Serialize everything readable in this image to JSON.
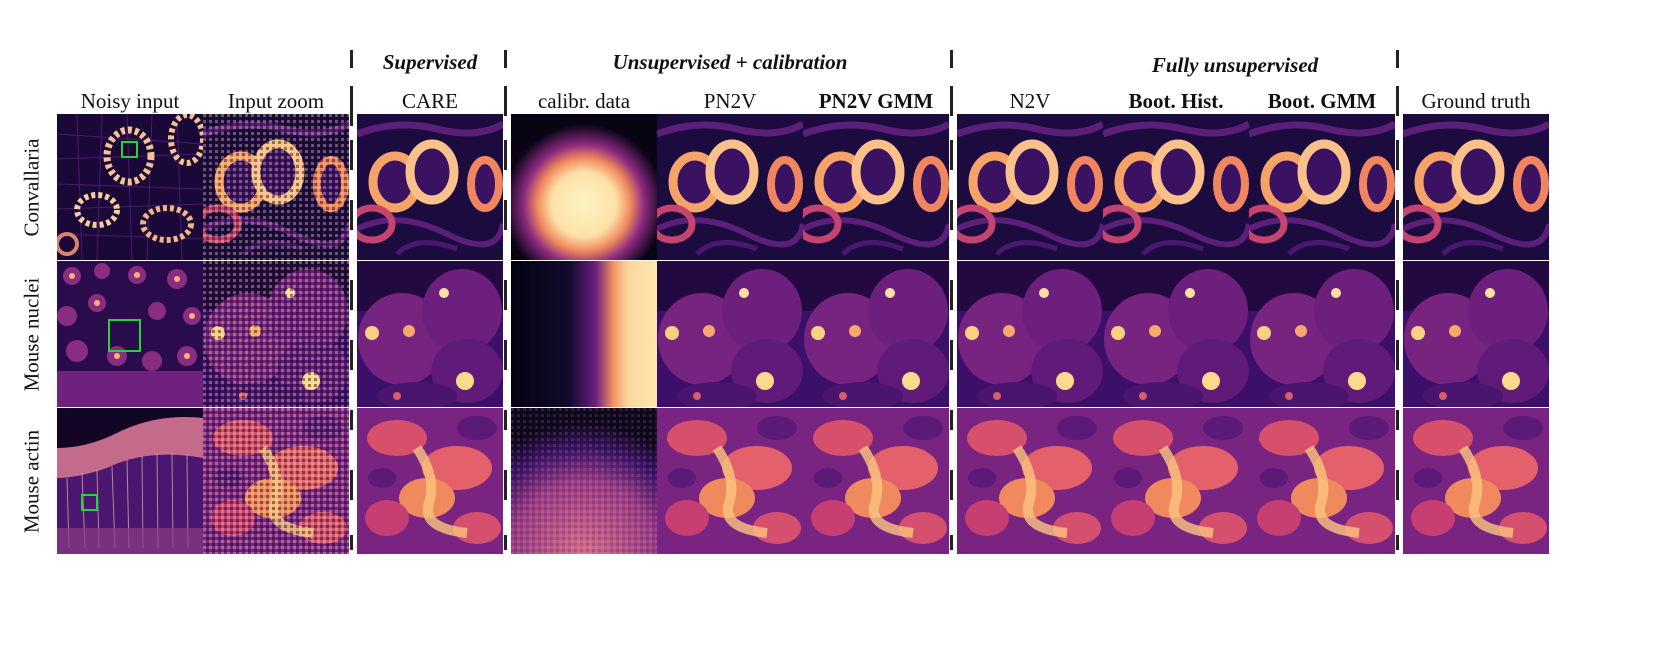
{
  "groups": {
    "supervised": "Supervised",
    "unsupervised_calibration": "Unsupervised + calibration",
    "fully_unsupervised": "Fully unsupervised"
  },
  "columns": {
    "noisy_input": "Noisy input",
    "input_zoom": "Input zoom",
    "care": "CARE",
    "calibr_data": "calibr. data",
    "pn2v": "PN2V",
    "pn2v_gmm": "PN2V GMM",
    "n2v": "N2V",
    "boot_hist": "Boot. Hist.",
    "boot_gmm": "Boot. GMM",
    "ground_truth": "Ground truth"
  },
  "rows": {
    "convallaria": "Convallaria",
    "mouse_nuclei": "Mouse nuclei",
    "mouse_actin": "Mouse actin"
  },
  "colors": {
    "colormap": "magma",
    "roi_box": "#22d63a"
  }
}
